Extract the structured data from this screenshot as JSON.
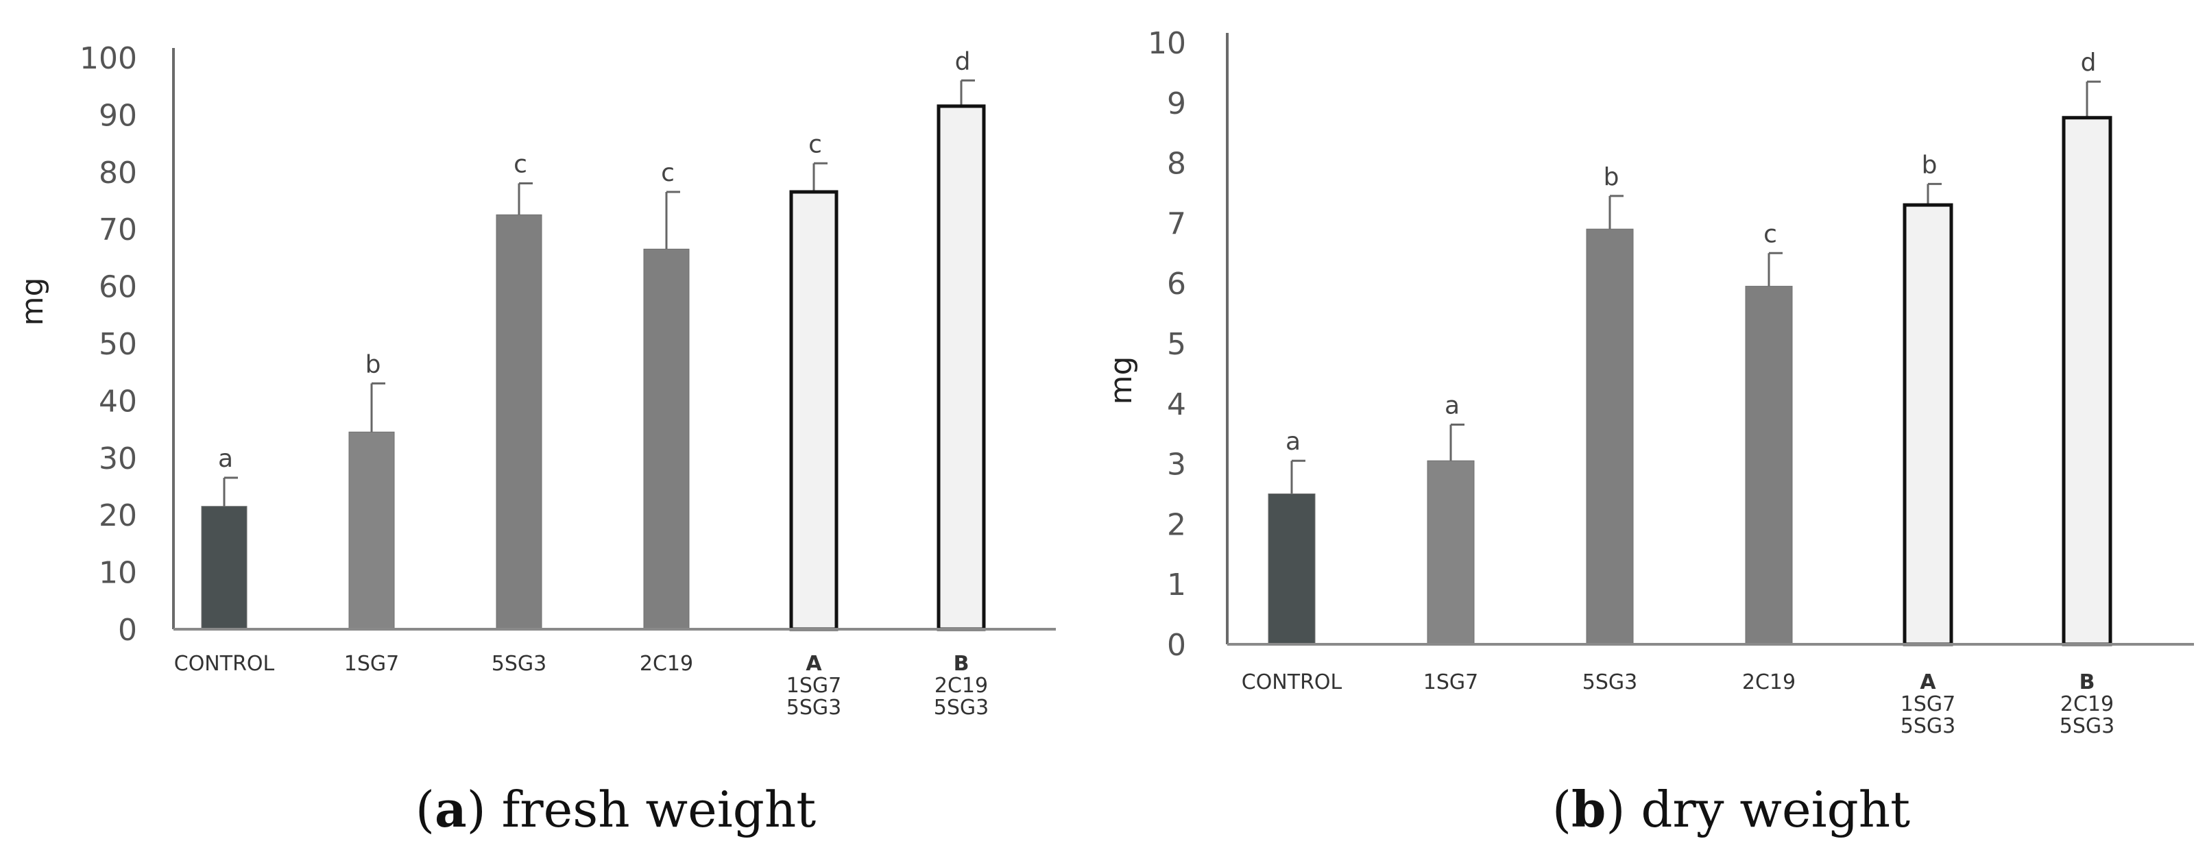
{
  "chart_data": [
    {
      "type": "bar",
      "id": "fresh",
      "caption_letter": "a",
      "caption_text": "fresh weight",
      "ylabel": "mg",
      "ylim": [
        0,
        100
      ],
      "yticks": [
        "0",
        "10",
        "20",
        "30",
        "40",
        "50",
        "60",
        "70",
        "80",
        "90",
        "100"
      ],
      "categories": [
        {
          "name": "CONTROL",
          "extra": []
        },
        {
          "name": "1SG7",
          "extra": []
        },
        {
          "name": "5SG3",
          "extra": []
        },
        {
          "name": "2C19",
          "extra": []
        },
        {
          "name": "A",
          "extra": [
            "1SG7",
            "5SG3"
          ]
        },
        {
          "name": "B",
          "extra": [
            "2C19",
            "5SG3"
          ]
        }
      ],
      "values": [
        21.5,
        34.5,
        72.5,
        66.5,
        76.5,
        91.5
      ],
      "errors": [
        5,
        8.5,
        5.5,
        10,
        5,
        4.5
      ],
      "letters": [
        "a",
        "b",
        "c",
        "c",
        "c",
        "d"
      ],
      "colors": [
        "#4a5152",
        "#858585",
        "#7f7f7f",
        "#7f7f7f",
        "#f2f2f2",
        "#f2f2f2"
      ]
    },
    {
      "type": "bar",
      "id": "dry",
      "caption_letter": "b",
      "caption_text": "dry weight",
      "ylabel": "mg",
      "ylim": [
        0,
        10
      ],
      "yticks": [
        "0",
        "1",
        "2",
        "3",
        "4",
        "5",
        "6",
        "7",
        "8",
        "9",
        "10"
      ],
      "categories": [
        {
          "name": "CONTROL",
          "extra": []
        },
        {
          "name": "1SG7",
          "extra": []
        },
        {
          "name": "5SG3",
          "extra": []
        },
        {
          "name": "2C19",
          "extra": []
        },
        {
          "name": "A",
          "extra": [
            "1SG7",
            "5SG3"
          ]
        },
        {
          "name": "B",
          "extra": [
            "2C19",
            "5SG3"
          ]
        }
      ],
      "values": [
        2.5,
        3.05,
        6.9,
        5.95,
        7.3,
        8.75
      ],
      "errors": [
        0.55,
        0.6,
        0.55,
        0.55,
        0.35,
        0.6
      ],
      "letters": [
        "a",
        "a",
        "b",
        "c",
        "b",
        "d"
      ],
      "colors": [
        "#4a5152",
        "#858585",
        "#7f7f7f",
        "#7f7f7f",
        "#f2f2f2",
        "#f2f2f2"
      ]
    }
  ]
}
